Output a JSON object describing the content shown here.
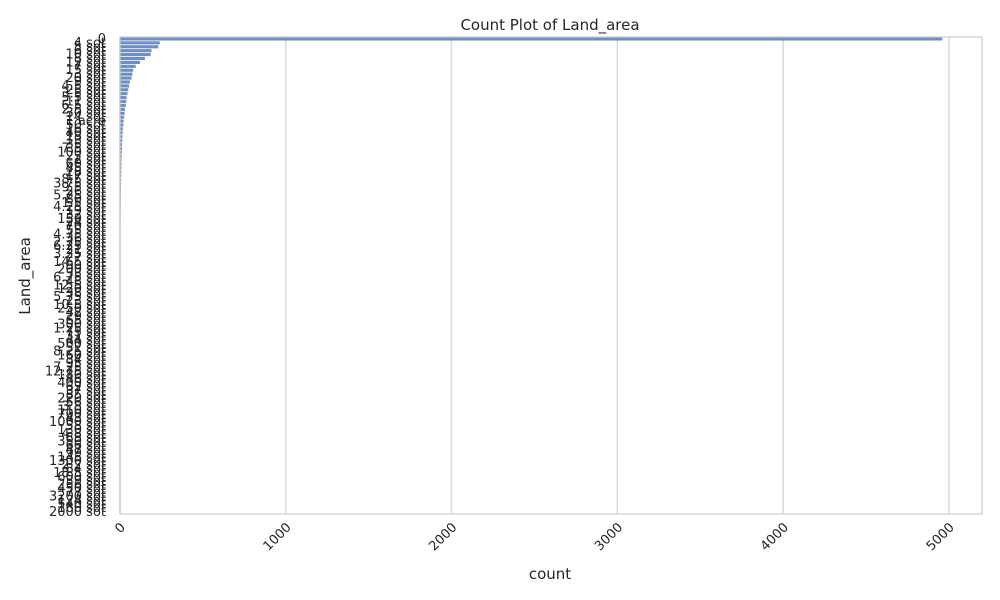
{
  "chart_data": {
    "type": "bar",
    "orientation": "horizontal",
    "title": "Count Plot of Land_area",
    "xlabel": "count",
    "ylabel": "Land_area",
    "xlim": [
      0,
      5200
    ],
    "xticks": [
      0,
      1000,
      2000,
      3000,
      4000,
      5000
    ],
    "grid": "vertical",
    "bar_color": "#4c72b0",
    "categories": [
      "0",
      "4 sot",
      "5 sot",
      "6 sot",
      "10 sot",
      "8 sot",
      "12 sot",
      "7 sot",
      "15 sot",
      "3 sot",
      "20 sot",
      "9 sot",
      "4.5 sot",
      "25 sot",
      "3.5 sot",
      "5.5 sot",
      "11 sot",
      "6.5 sot",
      "2.5 sot",
      "30 sot",
      "14 sot",
      "1 acre",
      "50 sot",
      "16 sot",
      "40 sot",
      "18 sot",
      "13 sot",
      "35 sot",
      "7.5 sot",
      "100 sot",
      "22 sot",
      "2 sot",
      "60 sot",
      "45 sot",
      "28 sot",
      "17 sot",
      "8.5 sot",
      "3.75 sot",
      "9.5 sot",
      "26 sot",
      "5.25 sot",
      "80 sot",
      "1.5 sot",
      "4.25 sot",
      "19 sot",
      "32 sot",
      "150 sot",
      "24 sot",
      "70 sot",
      "55 sot",
      "4.75 sot",
      "36 sot",
      "2.75 sot",
      "6.25 sot",
      "21 sot",
      "3.25 sot",
      "27 sot",
      "14.5 sot",
      "90 sot",
      "200 sot",
      "33 sot",
      "6.75 sot",
      "48 sot",
      "12.5 sot",
      "120 sot",
      "38 sot",
      "5.75 sot",
      "23 sot",
      "10.5 sot",
      "250 sot",
      "42 sot",
      "29 sot",
      "65 sot",
      "300 sot",
      "1.25 sot",
      "75 sot",
      "31 sot",
      "44 sot",
      "500 sot",
      "52 sot",
      "8.25 sot",
      "160 sot",
      "34 sot",
      "95 sot",
      "7.25 sot",
      "12.75 sot",
      "180 sot",
      "46 sot",
      "400 sot",
      "62 sot",
      "37 sot",
      "85 sot",
      "220 sot",
      "56 sot",
      "3.8 sot",
      "110 sot",
      "700 sot",
      "43 sot",
      "1000 sot",
      "58 sot",
      "130 sot",
      "4.8 sot",
      "88 sot",
      "350 sot",
      "66 sot",
      "47 sot",
      "99 sot",
      "145 sot",
      "1300 sot",
      "2.2 sot",
      "84 sot",
      "18.5 sot",
      "600 sot",
      "39 sot",
      "256 sot",
      "450 sot",
      "77 sot",
      "3200 sot",
      "124 sot",
      "540 sot",
      "160 sot",
      "2000 sot"
    ],
    "values": [
      4960,
      240,
      230,
      190,
      185,
      150,
      120,
      95,
      80,
      75,
      70,
      60,
      55,
      50,
      45,
      40,
      38,
      35,
      30,
      28,
      25,
      22,
      20,
      18,
      16,
      15,
      14,
      13,
      12,
      11,
      10,
      9,
      9,
      8,
      8,
      7,
      7,
      6,
      6,
      6,
      5,
      5,
      5,
      4,
      4,
      4,
      4,
      3,
      3,
      3,
      3,
      3,
      3,
      2,
      2,
      2,
      2,
      2,
      2,
      2,
      2,
      2,
      2,
      2,
      1,
      1,
      1,
      1,
      1,
      1,
      1,
      1,
      1,
      1,
      1,
      1,
      1,
      1,
      1,
      1,
      1,
      1,
      1,
      1,
      1,
      1,
      1,
      1,
      1,
      1,
      1,
      1,
      1,
      1,
      1,
      1,
      1,
      1,
      1,
      1,
      1,
      1,
      1,
      1,
      1,
      1,
      1,
      1,
      1,
      1,
      1,
      1,
      1,
      1,
      1,
      1,
      1,
      1,
      1,
      1,
      1,
      1
    ]
  }
}
